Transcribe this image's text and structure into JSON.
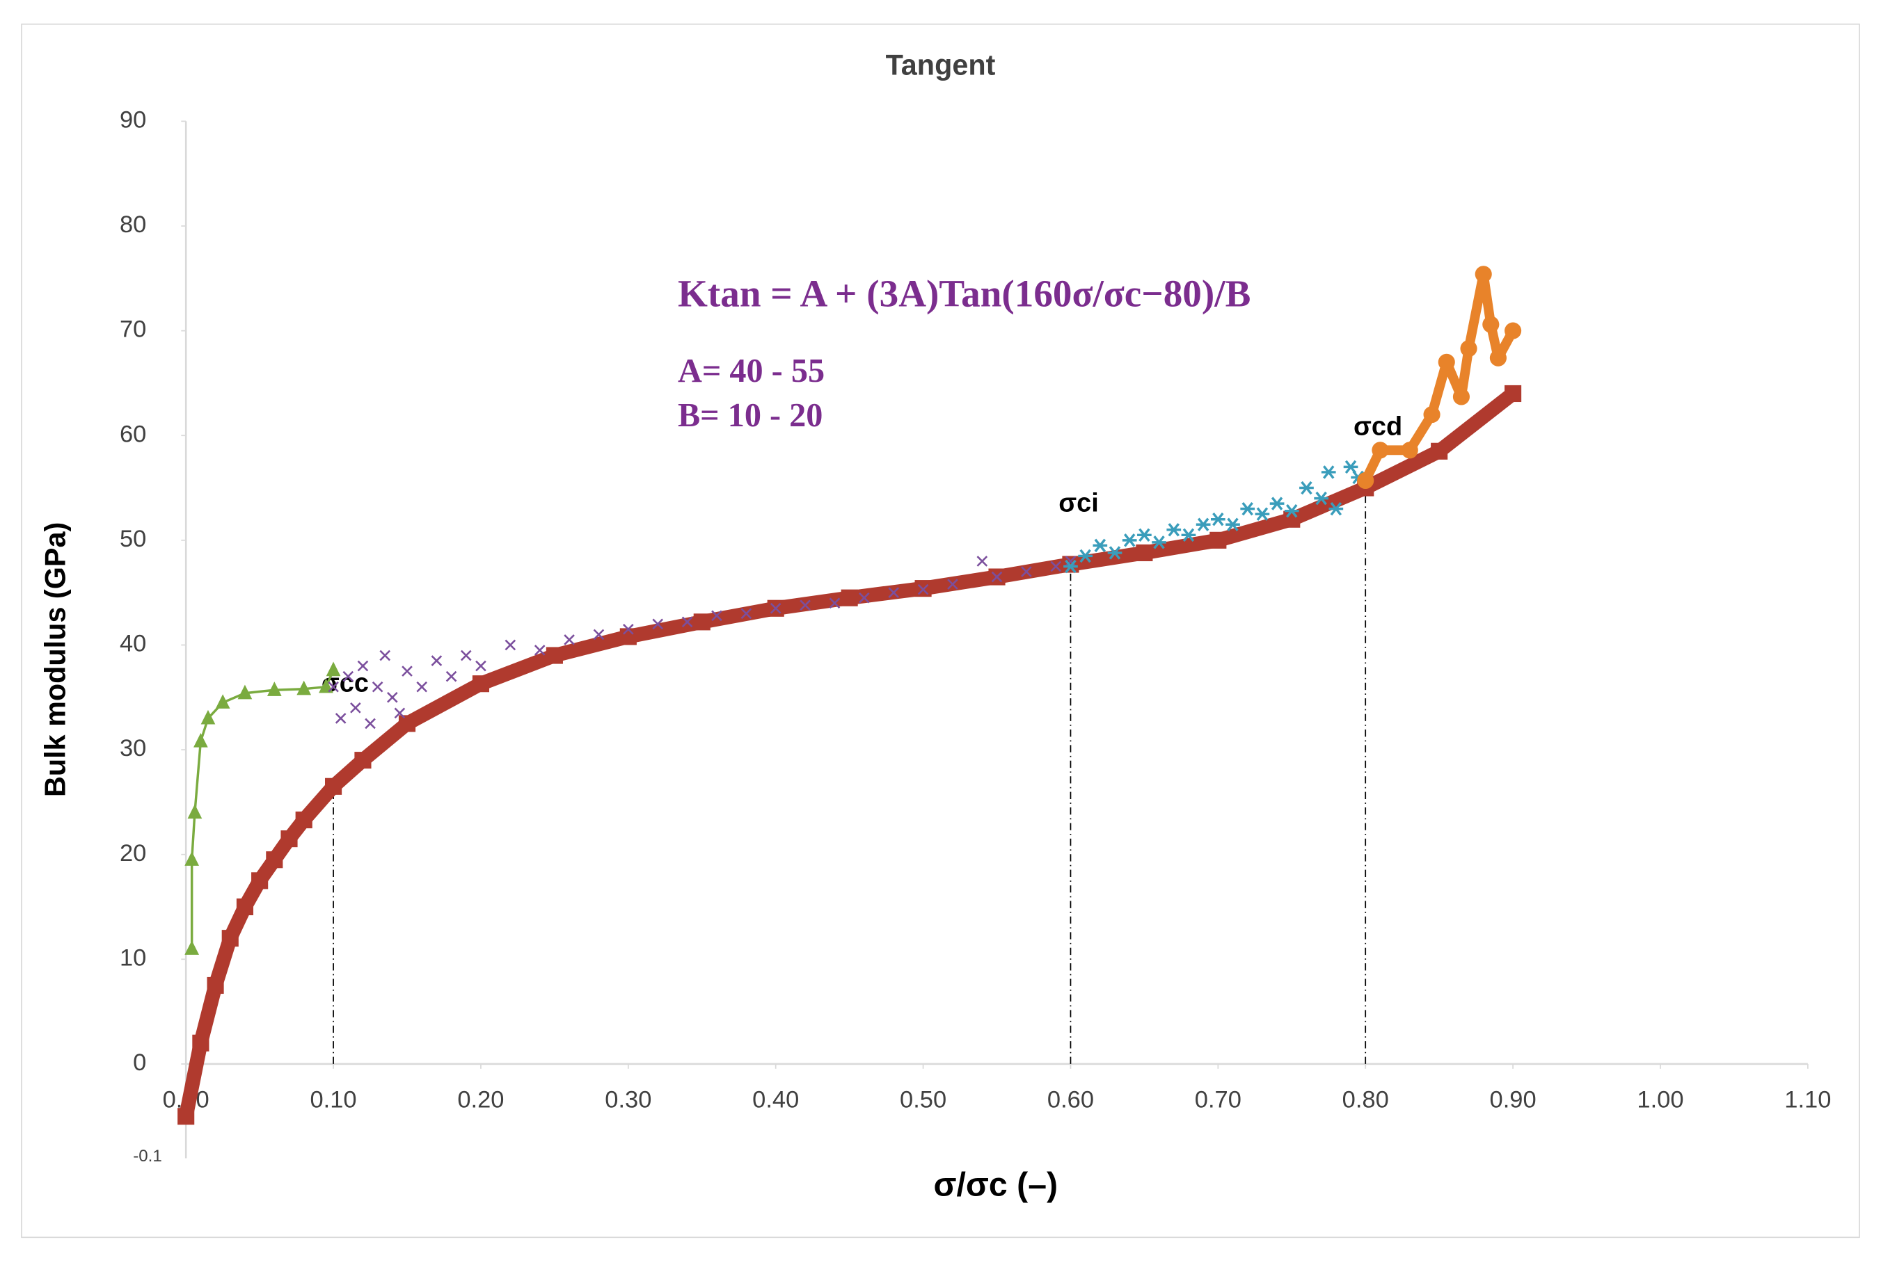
{
  "chart_data": {
    "type": "scatter",
    "title": "Tangent",
    "x_label": "σ/σc (–)",
    "y_label": "Bulk modulus (GPa)",
    "xlim": [
      0,
      1.1
    ],
    "ylim": [
      -9,
      90
    ],
    "xticks": [
      {
        "value": 0,
        "label": "0.00"
      },
      {
        "value": 0.1,
        "label": "0.10"
      },
      {
        "value": 0.2,
        "label": "0.20"
      },
      {
        "value": 0.3,
        "label": "0.30"
      },
      {
        "value": 0.4,
        "label": "0.40"
      },
      {
        "value": 0.5,
        "label": "0.50"
      },
      {
        "value": 0.6,
        "label": "0.60"
      },
      {
        "value": 0.7,
        "label": "0.70"
      },
      {
        "value": 0.8,
        "label": "0.80"
      },
      {
        "value": 0.9,
        "label": "0.90"
      },
      {
        "value": 1,
        "label": "1.00"
      },
      {
        "value": 1.1,
        "label": "1.10"
      }
    ],
    "yticks": [
      0,
      10,
      20,
      30,
      40,
      50,
      60,
      70,
      80,
      90
    ],
    "y_bottom_label": "-0.1",
    "formula": "Ktan = A + (3A)Tan(160σ/σc−80)/B",
    "range_a": "A= 40 - 55",
    "range_b": "B= 10 - 20",
    "markers": [
      {
        "x": 0.1,
        "y": 26.5,
        "label": "σcc"
      },
      {
        "x": 0.6,
        "y": 47.7,
        "label": "σci"
      },
      {
        "x": 0.8,
        "y": 55,
        "label": "σcd"
      }
    ],
    "series": [
      {
        "color": "#b03a2e",
        "marker": "square",
        "x": [
          0,
          0.01,
          0.02,
          0.03,
          0.04,
          0.05,
          0.06,
          0.07,
          0.08,
          0.1,
          0.12,
          0.15,
          0.2,
          0.25,
          0.3,
          0.35,
          0.4,
          0.45,
          0.5,
          0.55,
          0.6,
          0.65,
          0.7,
          0.75,
          0.8,
          0.85,
          0.9
        ],
        "values": [
          -5,
          2,
          7.5,
          12,
          15,
          17.5,
          19.5,
          21.5,
          23.3,
          26.5,
          29,
          32.5,
          36.3,
          39,
          40.8,
          42.2,
          43.5,
          44.5,
          45.4,
          46.5,
          47.7,
          48.8,
          50,
          52,
          55,
          58.5,
          64
        ]
      },
      {
        "color": "#7aab3f",
        "marker": "triangle",
        "x": [
          0.004,
          0.004,
          0.006,
          0.01,
          0.015,
          0.025,
          0.04,
          0.06,
          0.08,
          0.095,
          0.1
        ],
        "values": [
          11,
          19.5,
          24,
          30.8,
          33,
          34.5,
          35.4,
          35.7,
          35.8,
          36,
          37.6
        ]
      },
      {
        "color": "#7b4f9d",
        "marker": "x",
        "x": [
          0.1,
          0.105,
          0.11,
          0.115,
          0.12,
          0.125,
          0.13,
          0.135,
          0.14,
          0.145,
          0.15,
          0.16,
          0.17,
          0.18,
          0.19,
          0.2,
          0.22,
          0.24,
          0.26,
          0.28,
          0.3,
          0.32,
          0.34,
          0.36,
          0.38,
          0.4,
          0.42,
          0.44,
          0.46,
          0.48,
          0.5,
          0.52,
          0.54,
          0.55,
          0.57,
          0.59,
          0.6
        ],
        "values": [
          36,
          33,
          37,
          34,
          38,
          32.5,
          36,
          39,
          35,
          33.5,
          37.5,
          36,
          38.5,
          37,
          39,
          38,
          40,
          39.5,
          40.5,
          41,
          41.5,
          42,
          42.2,
          42.8,
          43,
          43.5,
          43.8,
          44,
          44.5,
          45,
          45.3,
          45.8,
          48,
          46.5,
          47,
          47.5,
          48
        ]
      },
      {
        "color": "#3a9dbb",
        "marker": "star",
        "x": [
          0.6,
          0.61,
          0.62,
          0.63,
          0.64,
          0.65,
          0.66,
          0.67,
          0.68,
          0.69,
          0.7,
          0.71,
          0.72,
          0.73,
          0.74,
          0.75,
          0.76,
          0.77,
          0.775,
          0.78,
          0.79,
          0.795
        ],
        "values": [
          47.5,
          48.5,
          49.5,
          48.8,
          50,
          50.5,
          49.8,
          51,
          50.5,
          51.5,
          52,
          51.5,
          53,
          52.5,
          53.5,
          52.8,
          55,
          54,
          56.5,
          53,
          57,
          56
        ]
      },
      {
        "color": "#e8832a",
        "marker": "circle",
        "x": [
          0.8,
          0.81,
          0.83,
          0.845,
          0.855,
          0.865,
          0.87,
          0.88,
          0.885,
          0.89,
          0.9
        ],
        "values": [
          55.7,
          58.6,
          58.6,
          62,
          67,
          63.7,
          68.3,
          75.4,
          70.6,
          67.4,
          70
        ]
      }
    ]
  }
}
